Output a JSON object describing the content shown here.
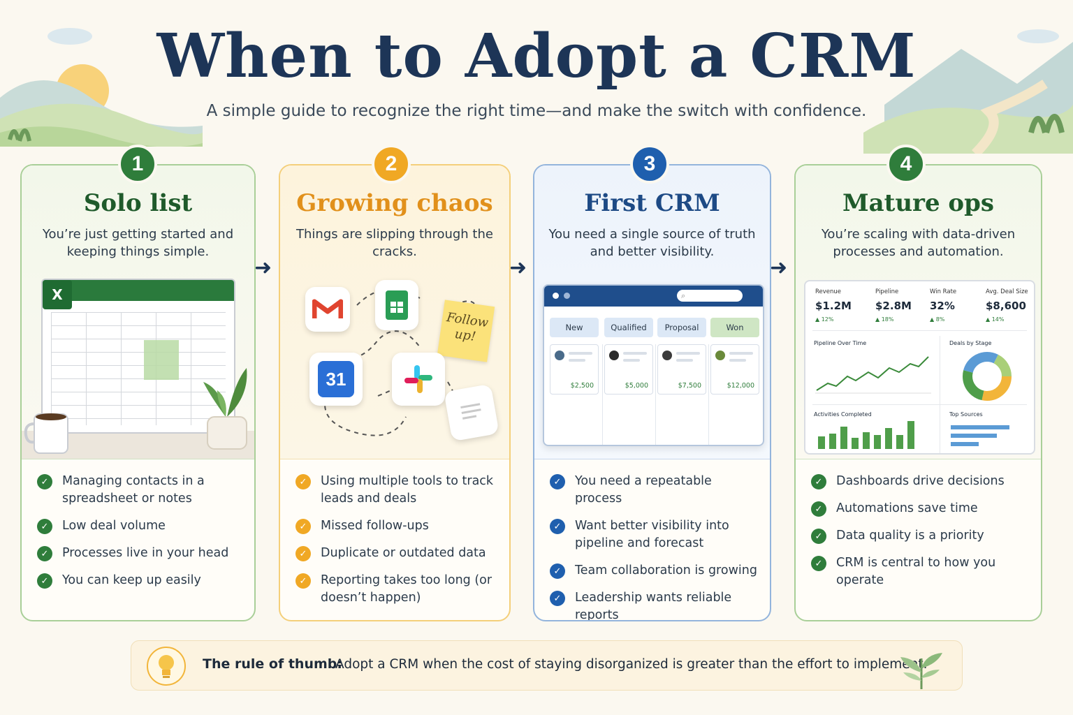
{
  "title": "When to Adopt a CRM",
  "subtitle": "A simple guide to recognize the right time—and make the switch with confidence.",
  "stages": [
    {
      "number": "1",
      "title": "Solo list",
      "description": "You’re just getting started and keeping things simple.",
      "color": "#2f7d3b",
      "items": [
        "Managing contacts in a spreadsheet or notes",
        "Low deal volume",
        "Processes live in your head",
        "You can keep up easily"
      ]
    },
    {
      "number": "2",
      "title": "Growing chaos",
      "description": "Things are slipping through the cracks.",
      "color": "#f0a824",
      "items": [
        "Using multiple tools to track leads and deals",
        "Missed follow-ups",
        "Duplicate or outdated data",
        "Reporting takes too long (or doesn’t happen)"
      ],
      "sticky_note": "Follow up!",
      "calendar_day": "31"
    },
    {
      "number": "3",
      "title": "First CRM",
      "description": "You need a single source of truth and better visibility.",
      "color": "#1f5fae",
      "items": [
        "You need a repeatable process",
        "Want better visibility into pipeline and forecast",
        "Team collaboration is growing",
        "Leadership wants reliable reports"
      ],
      "pipeline": [
        {
          "stage": "New",
          "amount": "$2,500"
        },
        {
          "stage": "Qualified",
          "amount": "$5,000"
        },
        {
          "stage": "Proposal",
          "amount": "$7,500"
        },
        {
          "stage": "Won",
          "amount": "$12,000"
        }
      ]
    },
    {
      "number": "4",
      "title": "Mature ops",
      "description": "You’re scaling with data-driven processes and automation.",
      "color": "#2f7d3b",
      "items": [
        "Dashboards drive decisions",
        "Automations save time",
        "Data quality is a priority",
        "CRM is central to how you operate"
      ],
      "kpis": [
        {
          "label": "Revenue",
          "value": "$1.2M",
          "change": "12%"
        },
        {
          "label": "Pipeline",
          "value": "$2.8M",
          "change": "18%"
        },
        {
          "label": "Win Rate",
          "value": "32%",
          "change": "8%"
        },
        {
          "label": "Avg. Deal Size",
          "value": "$8,600",
          "change": "14%"
        }
      ],
      "panels": [
        "Pipeline Over Time",
        "Deals by Stage",
        "Activities Completed",
        "Top Sources"
      ]
    }
  ],
  "rule": {
    "label": "The rule of thumb:",
    "text": "Adopt a CRM when the cost of staying disorganized is greater than the effort to implement."
  },
  "icons": [
    "excel-icon",
    "gmail-icon",
    "sheets-icon",
    "calendar-icon",
    "slack-icon",
    "doc-icon",
    "lightbulb-icon",
    "check-icon",
    "arrow-right-icon"
  ]
}
